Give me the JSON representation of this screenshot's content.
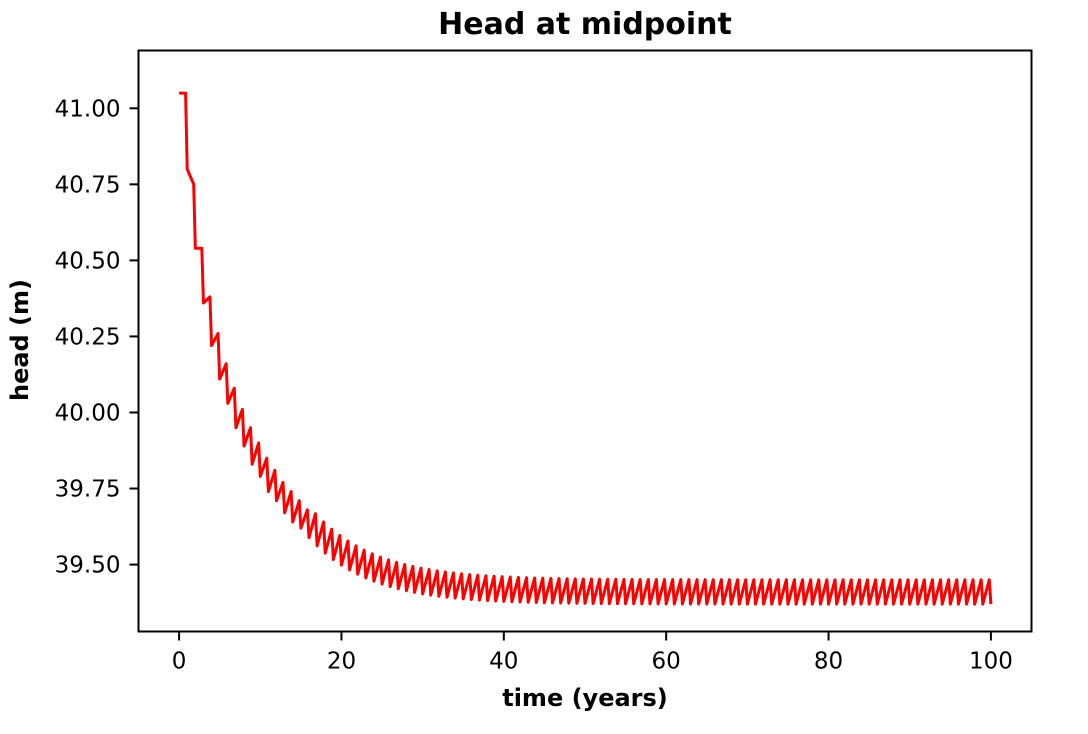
{
  "chart_data": {
    "type": "line",
    "title": "Head at midpoint",
    "xlabel": "time (years)",
    "ylabel": "head (m)",
    "xlim": [
      -5,
      105
    ],
    "ylim": [
      39.28,
      41.19
    ],
    "x_ticks": [
      0,
      20,
      40,
      60,
      80,
      100
    ],
    "x_tick_labels": [
      "0",
      "20",
      "40",
      "60",
      "80",
      "100"
    ],
    "y_ticks": [
      39.5,
      39.75,
      40.0,
      40.25,
      40.5,
      40.75,
      41.0
    ],
    "y_tick_labels": [
      "39.50",
      "39.75",
      "40.00",
      "40.25",
      "40.50",
      "40.75",
      "41.00"
    ],
    "grid": false,
    "series": [
      {
        "color": "#ff0000",
        "model": "seasonal_exponential_decay",
        "x_start": 0,
        "x_end": 100,
        "initial_head": 41.05,
        "steady_state_high": 39.45,
        "steady_state_low": 39.37,
        "decay_time_constant_years": 7.5,
        "period_years": 1,
        "points": [
          [
            0,
            41.05
          ],
          [
            0.8,
            41.05
          ],
          [
            1.0,
            40.8
          ],
          [
            1.8,
            40.75
          ],
          [
            2.0,
            40.54
          ],
          [
            2.8,
            40.54
          ],
          [
            3.0,
            40.36
          ],
          [
            3.8,
            40.38
          ],
          [
            4.0,
            40.22
          ],
          [
            4.8,
            40.26
          ],
          [
            5.0,
            40.11
          ],
          [
            5.8,
            40.16
          ],
          [
            6.0,
            40.03
          ],
          [
            6.8,
            40.08
          ],
          [
            7.0,
            39.95
          ],
          [
            7.8,
            40.01
          ],
          [
            8.0,
            39.89
          ],
          [
            8.8,
            39.95
          ],
          [
            9.0,
            39.83
          ],
          [
            9.8,
            39.9
          ],
          [
            10.0,
            39.79
          ],
          [
            10.8,
            39.85
          ],
          [
            11.0,
            39.74
          ],
          [
            11.8,
            39.81
          ],
          [
            12.0,
            39.71
          ],
          [
            12.8,
            39.77
          ],
          [
            13.0,
            39.67
          ],
          [
            13.8,
            39.74
          ],
          [
            14.0,
            39.64
          ],
          [
            14.8,
            39.71
          ],
          [
            15.0,
            39.62
          ],
          [
            15.8,
            39.68
          ]
        ]
      }
    ]
  }
}
